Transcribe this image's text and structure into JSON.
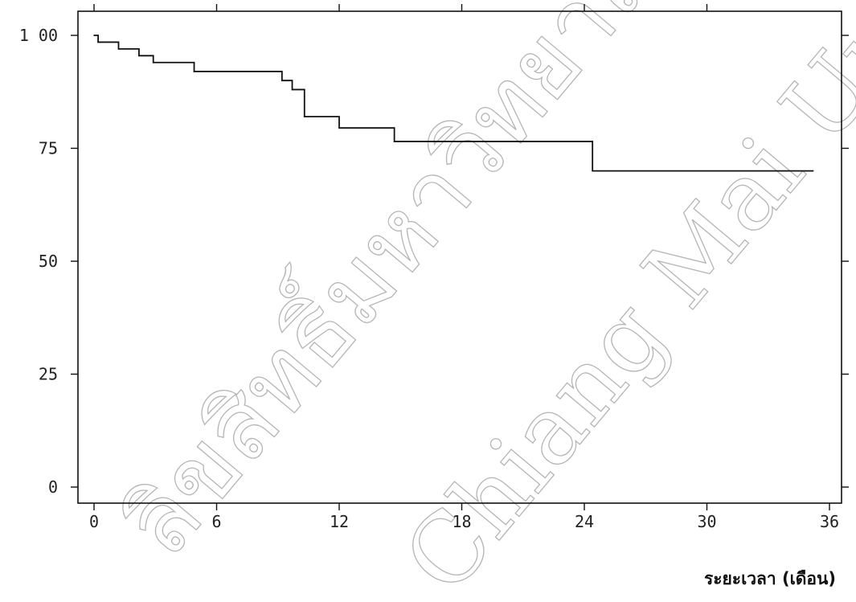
{
  "chart_data": {
    "type": "line",
    "step": true,
    "title": "",
    "xlabel": "ระยะเวลา (เดือน)",
    "ylabel": "",
    "xlim": [
      0,
      36
    ],
    "ylim": [
      0,
      100
    ],
    "x_ticks": [
      0,
      6,
      12,
      18,
      24,
      30,
      36
    ],
    "x_tick_labels": [
      "0",
      "6",
      "12",
      "18",
      "24",
      "30",
      "36"
    ],
    "y_ticks": [
      0,
      25,
      50,
      75,
      100
    ],
    "y_tick_labels": [
      "0",
      "25",
      "50",
      "75",
      "1 00"
    ],
    "grid": false,
    "legend": "none",
    "colors": {
      "line": "#111111",
      "axis": "#111111"
    },
    "series": [
      {
        "x": [
          0,
          0.2,
          1.2,
          2.2,
          2.9,
          4.9,
          9.2,
          9.7,
          10.3,
          12.0,
          14.7,
          24.4,
          35.2
        ],
        "y": [
          100,
          98.5,
          97.0,
          95.5,
          94.0,
          92.0,
          90.0,
          88.0,
          82.0,
          79.5,
          76.5,
          70.0,
          70.0
        ]
      }
    ]
  },
  "watermark": {
    "line1": "ลิขสิทธิ์มหาวิทยาลัยเชียงใหม่",
    "line2": "Chiang Mai University"
  }
}
